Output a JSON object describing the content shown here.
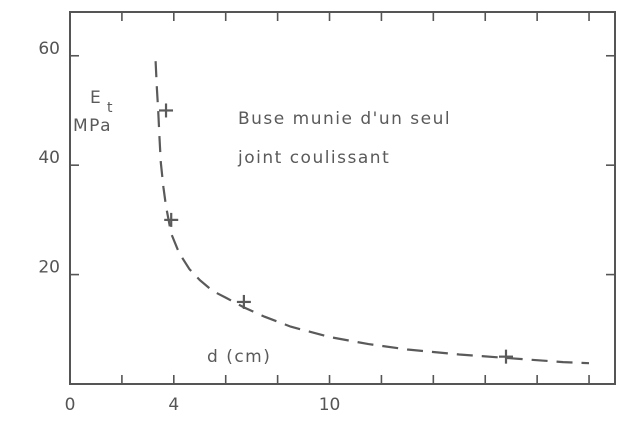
{
  "chart_data": {
    "type": "scatter",
    "title": "",
    "xlabel": "d (cm)",
    "ylabel_line1": "E",
    "ylabel_subscript": "t",
    "ylabel_line2": "MPa",
    "annotation": {
      "line1": "Buse munie d'un seul",
      "line2": "joint coulissant"
    },
    "xlim": [
      0,
      21
    ],
    "ylim": [
      0,
      68
    ],
    "x_ticks": [
      {
        "value": 0,
        "label": "0"
      },
      {
        "value": 2,
        "label": ""
      },
      {
        "value": 4,
        "label": "4"
      },
      {
        "value": 6,
        "label": ""
      },
      {
        "value": 8,
        "label": ""
      },
      {
        "value": 10,
        "label": "10"
      },
      {
        "value": 12,
        "label": ""
      },
      {
        "value": 14,
        "label": ""
      },
      {
        "value": 16,
        "label": ""
      },
      {
        "value": 18,
        "label": ""
      },
      {
        "value": 20,
        "label": ""
      }
    ],
    "y_ticks": [
      {
        "value": 20,
        "label": "20"
      },
      {
        "value": 40,
        "label": "40"
      },
      {
        "value": 60,
        "label": "60"
      }
    ],
    "points": [
      {
        "x": 3.7,
        "y": 50
      },
      {
        "x": 3.9,
        "y": 30
      },
      {
        "x": 6.7,
        "y": 15
      },
      {
        "x": 16.8,
        "y": 5
      }
    ],
    "fit_curve": {
      "style": "dashed",
      "x": [
        3.3,
        3.35,
        3.4,
        3.45,
        3.5,
        3.6,
        3.7,
        3.9,
        4.2,
        4.6,
        5.0,
        5.5,
        6.0,
        6.7,
        7.5,
        8.5,
        10.0,
        11.5,
        13.0,
        15.0,
        17.0,
        19.0,
        20.0
      ],
      "y": [
        59,
        54,
        50,
        45,
        40.5,
        36,
        32.5,
        27.5,
        24,
        21,
        19,
        17,
        15.8,
        14,
        12.3,
        10.5,
        8.6,
        7.3,
        6.3,
        5.4,
        4.7,
        4.0,
        3.8
      ]
    },
    "grid": false,
    "colors": {
      "ink": "#5a5a5a",
      "frame": "#555555"
    }
  }
}
